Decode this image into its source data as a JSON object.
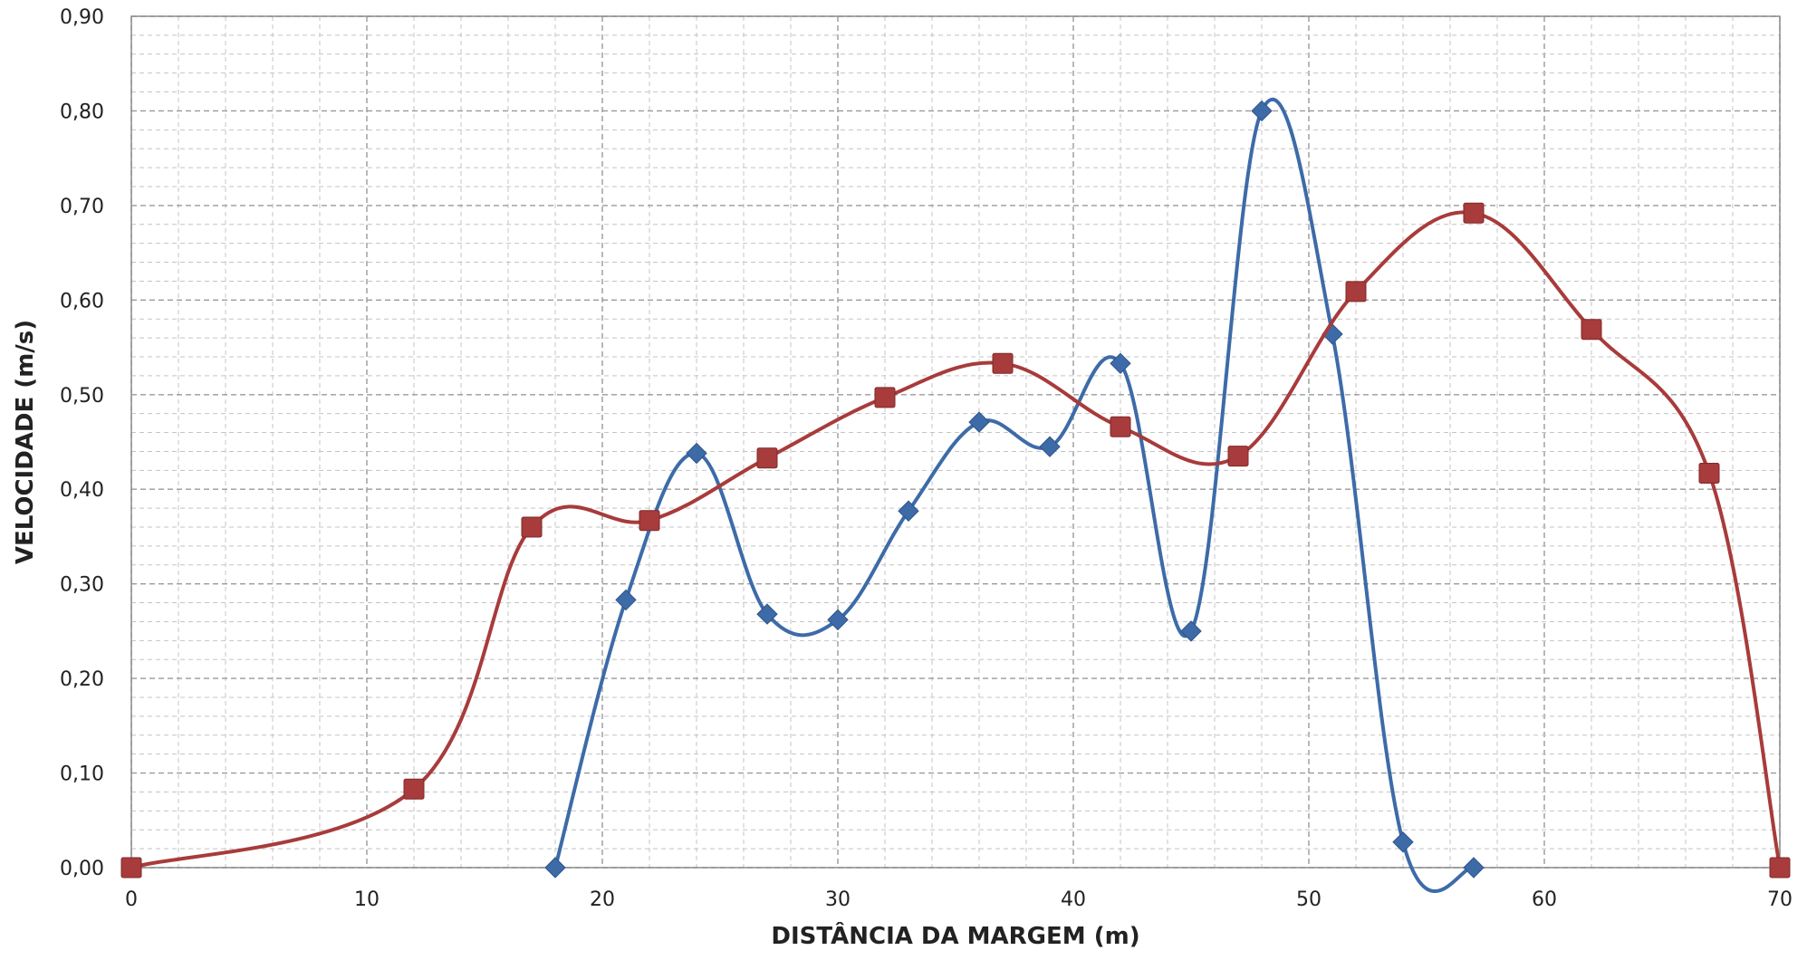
{
  "chart_data": {
    "type": "line",
    "title": "",
    "xlabel": "DISTÂNCIA DA MARGEM (m)",
    "ylabel": "VELOCIDADE (m/s)",
    "xlim": [
      0,
      70
    ],
    "ylim": [
      0,
      0.9
    ],
    "x_ticks": [
      "0",
      "10",
      "20",
      "30",
      "40",
      "50",
      "60",
      "70"
    ],
    "y_ticks": [
      "0,00",
      "0,10",
      "0,20",
      "0,30",
      "0,40",
      "0,50",
      "0,60",
      "0,70",
      "0,80",
      "0,90"
    ],
    "grid": true,
    "legend": "none",
    "series": [
      {
        "marker": "diamond",
        "color": "#3d6ba8",
        "x": [
          18,
          21,
          24,
          27,
          30,
          33,
          36,
          39,
          42,
          45,
          48,
          51,
          54,
          57
        ],
        "y": [
          0.0,
          0.283,
          0.438,
          0.268,
          0.262,
          0.377,
          0.471,
          0.445,
          0.533,
          0.25,
          0.8,
          0.564,
          0.027,
          0.0
        ]
      },
      {
        "marker": "square",
        "color": "#a83b3b",
        "x": [
          0,
          12,
          17,
          22,
          27,
          32,
          37,
          42,
          47,
          52,
          57,
          62,
          67,
          70
        ],
        "y": [
          0.0,
          0.083,
          0.36,
          0.367,
          0.433,
          0.497,
          0.533,
          0.466,
          0.435,
          0.609,
          0.692,
          0.569,
          0.417,
          0.0
        ]
      }
    ]
  }
}
